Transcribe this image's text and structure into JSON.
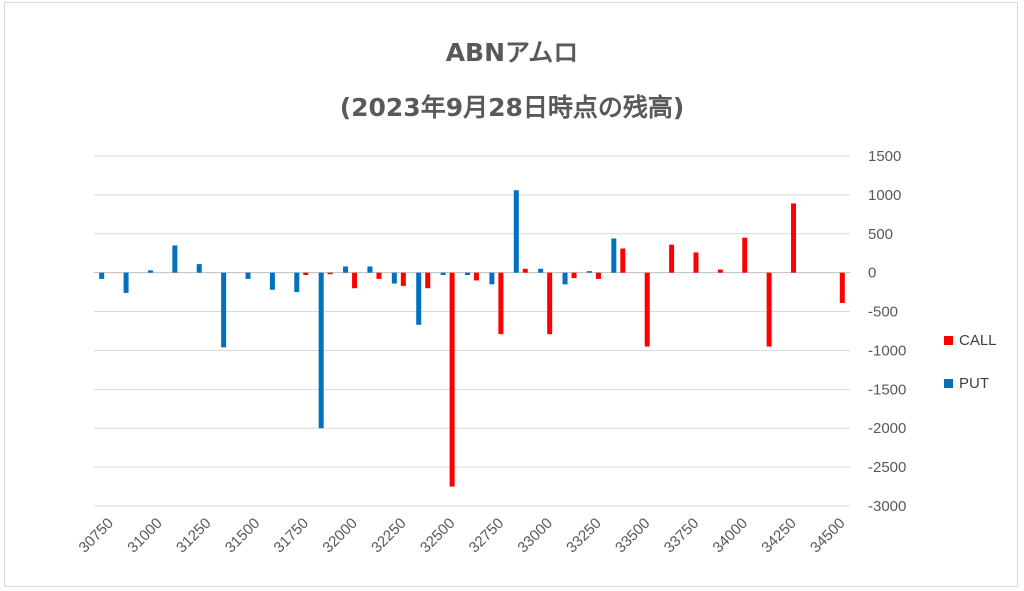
{
  "chart_data": {
    "type": "bar",
    "title": "ABNアムロ",
    "subtitle": "(2023年9月28日時点の残高)",
    "categories": [
      30750,
      30875,
      31000,
      31125,
      31250,
      31375,
      31500,
      31625,
      31750,
      31875,
      32000,
      32125,
      32250,
      32375,
      32500,
      32625,
      32750,
      32875,
      33000,
      33125,
      33250,
      33375,
      33500,
      33625,
      33750,
      33875,
      34000,
      34125,
      34250,
      34375,
      34500
    ],
    "x_tick_labels": [
      "30750",
      "31000",
      "31250",
      "31500",
      "31750",
      "32000",
      "32250",
      "32500",
      "32750",
      "33000",
      "33250",
      "33500",
      "33750",
      "34000",
      "34250",
      "34500"
    ],
    "series": [
      {
        "name": "CALL",
        "color": "#ff0000",
        "values": [
          0,
          0,
          0,
          0,
          0,
          0,
          0,
          0,
          -30,
          -20,
          -200,
          -80,
          -170,
          -200,
          -2750,
          -100,
          -790,
          50,
          -790,
          -70,
          -80,
          310,
          -950,
          360,
          260,
          40,
          450,
          -950,
          890,
          0,
          -390
        ]
      },
      {
        "name": "PUT",
        "color": "#0070c0",
        "values": [
          -80,
          -260,
          30,
          350,
          110,
          -960,
          -80,
          -220,
          -250,
          -2000,
          80,
          80,
          -140,
          -670,
          -30,
          -30,
          -150,
          1060,
          50,
          -150,
          20,
          440,
          0,
          0,
          0,
          0,
          0,
          0,
          0,
          0,
          0
        ]
      }
    ],
    "y_tick_labels": [
      "1500",
      "1000",
      "500",
      "0",
      "-500",
      "-1000",
      "-1500",
      "-2000",
      "-2500",
      "-3000"
    ],
    "ylim": [
      -3000,
      1500
    ],
    "y_axis_side": "right",
    "gridlines": true,
    "legend_position": "right"
  }
}
